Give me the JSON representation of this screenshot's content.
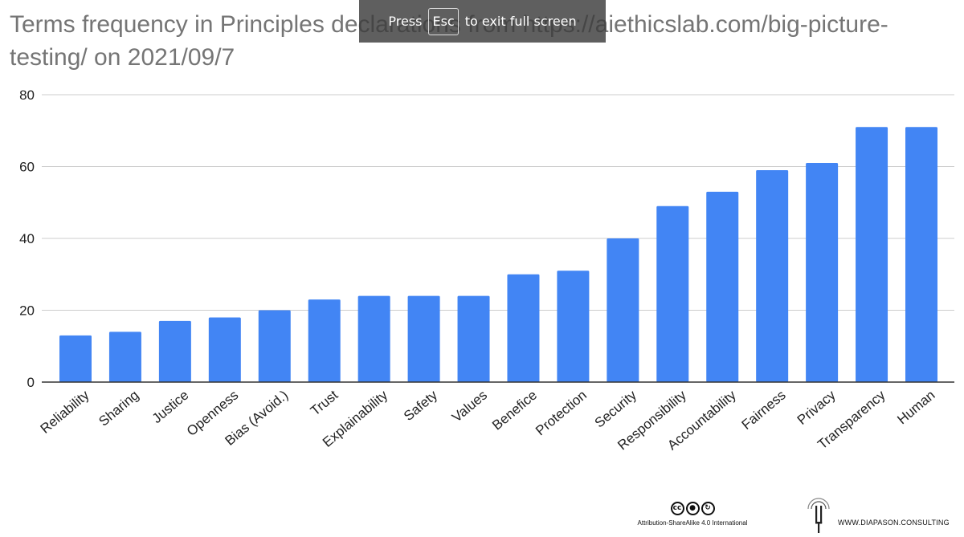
{
  "chart_data": {
    "type": "bar",
    "title": "Terms frequency in Principles declarations from https://aiethicslab.com/big-picture-testing/ on 2021/09/7",
    "xlabel": "",
    "ylabel": "",
    "ylim": [
      0,
      80
    ],
    "yticks": [
      0,
      20,
      40,
      60,
      80
    ],
    "grid": true,
    "bar_color": "#4285f4",
    "categories": [
      "Reliability",
      "Sharing",
      "Justice",
      "Openness",
      "Bias (Avoid.)",
      "Trust",
      "Explainability",
      "Safety",
      "Values",
      "Benefice",
      "Protection",
      "Security",
      "Responsibility",
      "Accountability",
      "Fairness",
      "Privacy",
      "Transparency",
      "Human"
    ],
    "values": [
      13,
      14,
      17,
      18,
      20,
      23,
      24,
      24,
      24,
      30,
      31,
      40,
      49,
      53,
      59,
      61,
      71,
      71
    ]
  },
  "fullscreen_notice": {
    "press": "Press",
    "key": "Esc",
    "rest": "to exit full screen"
  },
  "footer": {
    "license_text": "Attribution-ShareAlike 4.0 International",
    "license_icons": [
      "cc-icon",
      "by-icon",
      "sa-icon"
    ],
    "brand_text": "WWW.DIAPASON.CONSULTING",
    "brand_icon": "tuning-fork-icon"
  }
}
